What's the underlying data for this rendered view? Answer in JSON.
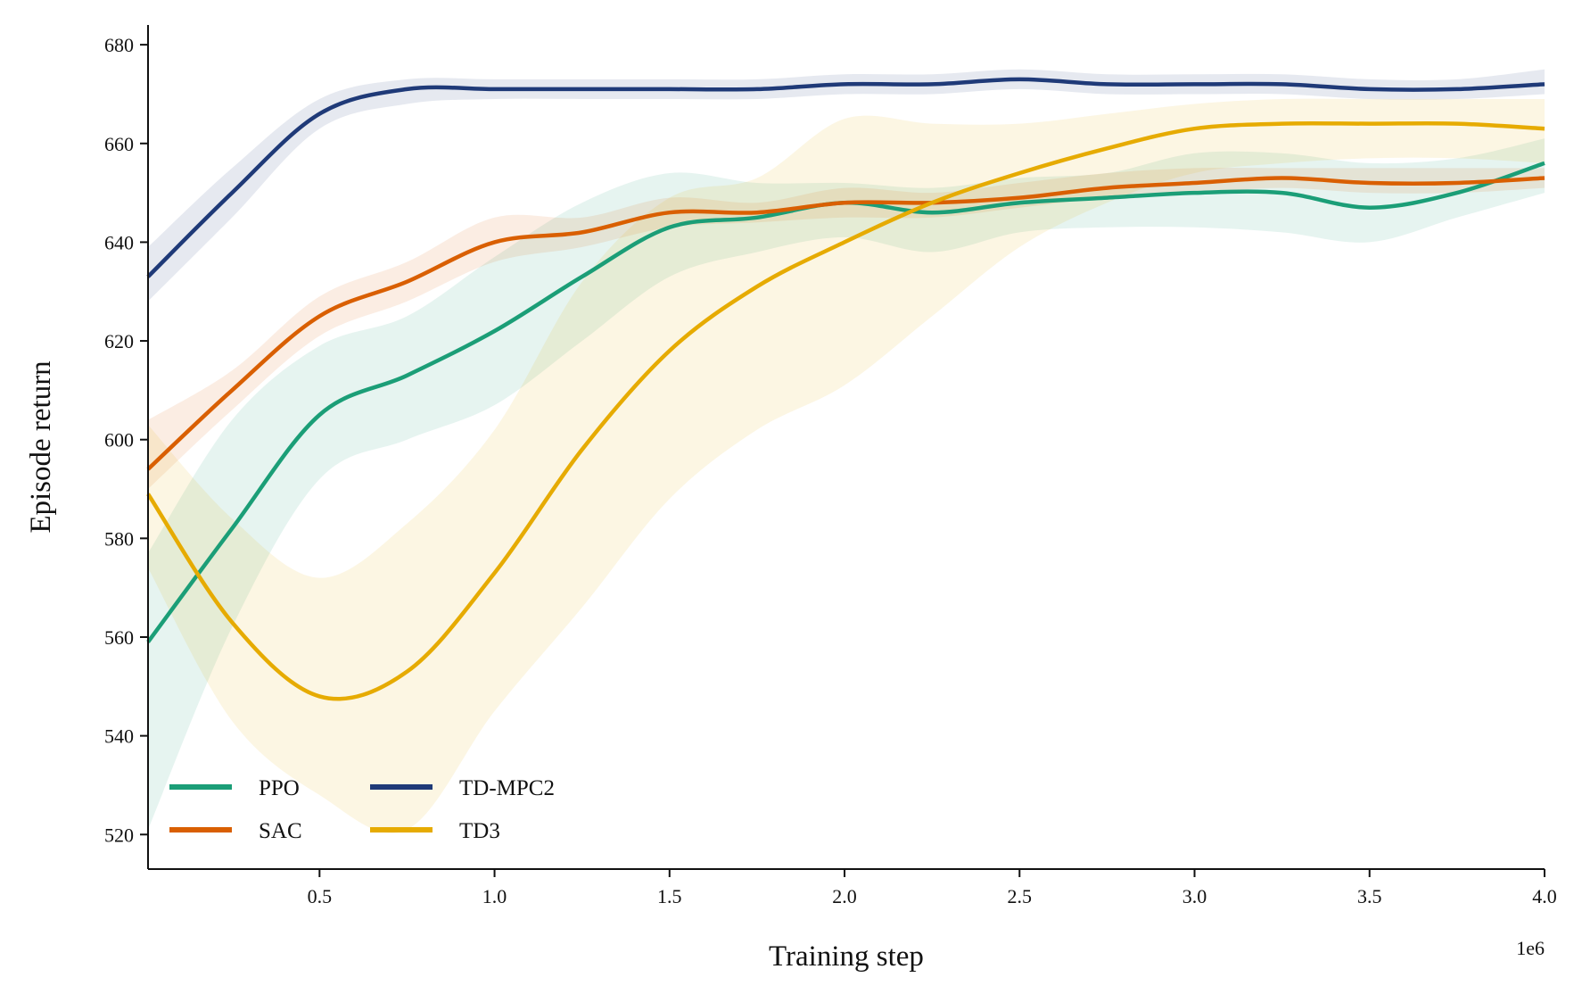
{
  "chart_data": {
    "type": "line",
    "title": "",
    "xlabel": "Training step",
    "ylabel": "Episode return",
    "x_offset_label": "1e6",
    "xlim": [
      0.01,
      4.0
    ],
    "ylim": [
      513,
      684
    ],
    "xticks": [
      0.5,
      1.0,
      1.5,
      2.0,
      2.5,
      3.0,
      3.5,
      4.0
    ],
    "xtick_labels": [
      "0.5",
      "1.0",
      "1.5",
      "2.0",
      "2.5",
      "3.0",
      "3.5",
      "4.0"
    ],
    "yticks": [
      520,
      540,
      560,
      580,
      600,
      620,
      640,
      660,
      680
    ],
    "ytick_labels": [
      "520",
      "540",
      "560",
      "580",
      "600",
      "620",
      "640",
      "660",
      "680"
    ],
    "grid": false,
    "legend": {
      "placement": "lower-left",
      "columns": 2
    },
    "x": [
      0.01,
      0.25,
      0.5,
      0.75,
      1.0,
      1.25,
      1.5,
      1.75,
      2.0,
      2.25,
      2.5,
      2.75,
      3.0,
      3.25,
      3.5,
      3.75,
      4.0
    ],
    "series": [
      {
        "name": "PPO",
        "color": "#1b9e77",
        "values": [
          559,
          582,
          605,
          613,
          622,
          633,
          643,
          645,
          648,
          646,
          648,
          649,
          650,
          650,
          647,
          650,
          656
        ],
        "lower": [
          521,
          562,
          592,
          600,
          607,
          620,
          633,
          638,
          641,
          638,
          642,
          643,
          643,
          642,
          640,
          645,
          650
        ],
        "upper": [
          577,
          604,
          619,
          625,
          637,
          648,
          654,
          652,
          652,
          651,
          653,
          654,
          658,
          658,
          656,
          657,
          661
        ]
      },
      {
        "name": "SAC",
        "color": "#d95f02",
        "values": [
          594,
          610,
          625,
          632,
          640,
          642,
          646,
          646,
          648,
          648,
          649,
          651,
          652,
          653,
          652,
          652,
          653
        ],
        "lower": [
          590,
          606,
          621,
          628,
          636,
          639,
          643,
          644,
          645,
          645,
          647,
          649,
          650,
          651,
          650,
          650,
          651
        ],
        "upper": [
          604,
          614,
          629,
          636,
          645,
          645,
          649,
          648,
          651,
          650,
          652,
          654,
          655,
          655,
          655,
          655,
          655
        ]
      },
      {
        "name": "TD-MPC2",
        "color": "#1f3a78",
        "values": [
          633,
          650,
          666,
          671,
          671,
          671,
          671,
          671,
          672,
          672,
          673,
          672,
          672,
          672,
          671,
          671,
          672
        ],
        "lower": [
          628,
          645,
          663,
          668,
          669,
          669,
          669,
          669,
          670,
          670,
          671,
          670,
          670,
          670,
          669,
          669,
          670
        ],
        "upper": [
          639,
          655,
          669,
          673,
          673,
          673,
          673,
          673,
          674,
          674,
          675,
          674,
          674,
          674,
          673,
          673,
          675
        ]
      },
      {
        "name": "TD3",
        "color": "#e6ab02",
        "values": [
          589,
          563,
          548,
          553,
          573,
          598,
          618,
          631,
          640,
          648,
          654,
          659,
          663,
          664,
          664,
          664,
          663
        ],
        "lower": [
          574,
          543,
          528,
          521,
          545,
          566,
          588,
          602,
          611,
          625,
          639,
          648,
          654,
          656,
          657,
          657,
          656
        ],
        "upper": [
          603,
          584,
          572,
          583,
          602,
          632,
          649,
          653,
          665,
          664,
          664,
          666,
          668,
          669,
          669,
          669,
          669
        ]
      }
    ]
  }
}
